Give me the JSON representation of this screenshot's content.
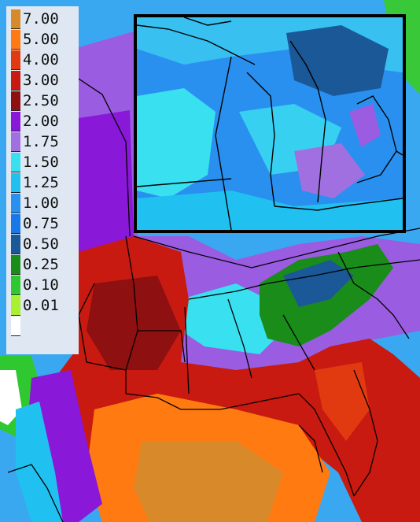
{
  "legend": {
    "entries": [
      {
        "label": "7.00",
        "color": "#d88a2a"
      },
      {
        "label": "5.00",
        "color": "#ff7a10"
      },
      {
        "label": "4.00",
        "color": "#e23a10"
      },
      {
        "label": "3.00",
        "color": "#c81a10"
      },
      {
        "label": "2.50",
        "color": "#8e1010"
      },
      {
        "label": "2.00",
        "color": "#8a18d8"
      },
      {
        "label": "1.75",
        "color": "#a070e0"
      },
      {
        "label": "1.50",
        "color": "#38e0f0"
      },
      {
        "label": "1.25",
        "color": "#20c0f0"
      },
      {
        "label": "1.00",
        "color": "#2a90f0"
      },
      {
        "label": "0.75",
        "color": "#1878e8"
      },
      {
        "label": "0.50",
        "color": "#1a5898"
      },
      {
        "label": "0.25",
        "color": "#1a8c1a"
      },
      {
        "label": "0.10",
        "color": "#30c830"
      },
      {
        "label": "0.01",
        "color": "#a8f030"
      },
      {
        "label": "",
        "color": "#ffffff"
      }
    ]
  },
  "map": {
    "region": "southeastern-us-and-gulf-of-mexico",
    "inset_region": "great-lakes-michigan"
  }
}
